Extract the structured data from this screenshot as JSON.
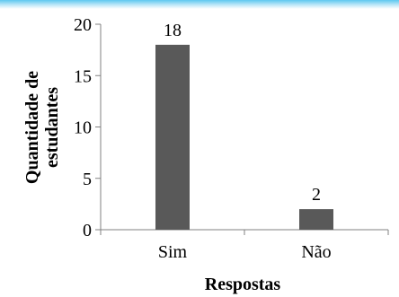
{
  "chart_data": {
    "type": "bar",
    "categories": [
      "Sim",
      "Não"
    ],
    "values": [
      18,
      2
    ],
    "data_labels": [
      "18",
      "2"
    ],
    "ylim": [
      0,
      20
    ],
    "yticks": [
      0,
      5,
      10,
      15,
      20
    ],
    "xlabel": "Respostas",
    "ylabel_lines": [
      "Quantidade de",
      "estudantes"
    ],
    "bar_color": "#595959",
    "grid": false
  }
}
